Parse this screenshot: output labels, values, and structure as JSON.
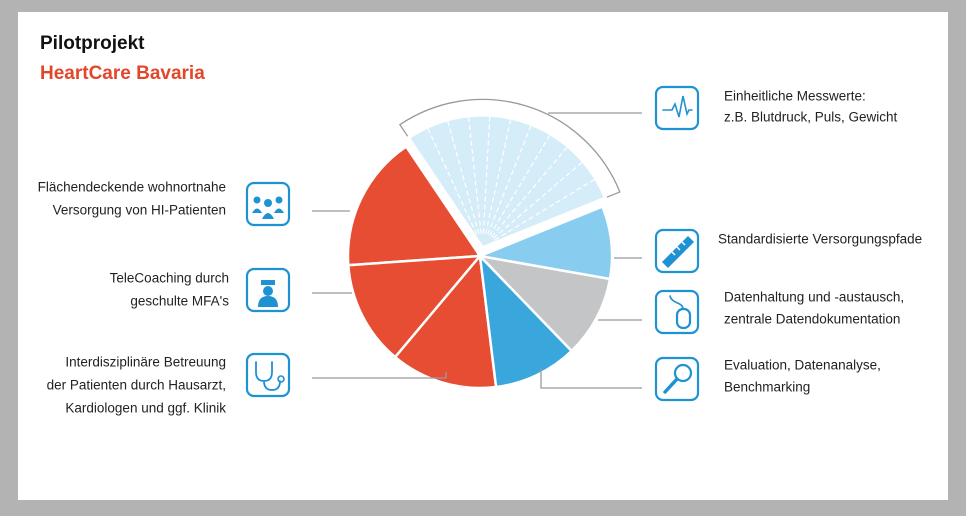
{
  "header": {
    "title": "Pilotprojekt",
    "subtitle": "HeartCare Bavaria"
  },
  "left_items": [
    {
      "lines": [
        "Flächendeckende wohnortnahe",
        "Versorgung von HI-Patienten"
      ]
    },
    {
      "lines": [
        "TeleCoaching durch",
        "geschulte MFA's"
      ]
    },
    {
      "lines": [
        "Interdisziplinäre Betreuung",
        "der Patienten durch Hausarzt,",
        "Kardiologen und ggf. Klinik"
      ]
    }
  ],
  "right_items": [
    {
      "lines": [
        "Einheitliche Messwerte:",
        "z.B. Blutdruck, Puls, Gewicht"
      ]
    },
    {
      "lines": [
        "Standardisierte Versorgungspfade"
      ]
    },
    {
      "lines": [
        "Datenhaltung und -austausch,",
        "zentrale Datendokumentation"
      ]
    },
    {
      "lines": [
        "Evaluation, Datenanalyse,",
        "Benchmarking"
      ]
    }
  ]
}
